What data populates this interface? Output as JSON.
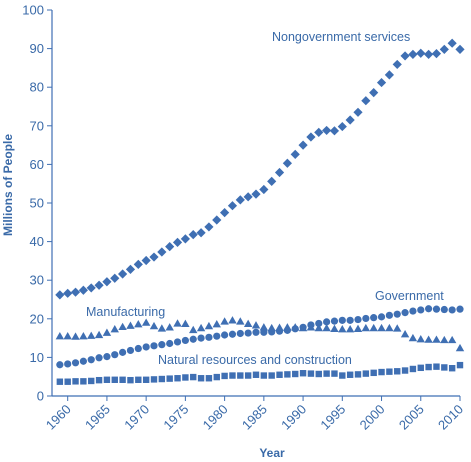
{
  "colors": {
    "accent": "#3f6fb3",
    "text": "#3a6aa8"
  },
  "chart_data": {
    "type": "scatter",
    "title": "",
    "xlabel": "Year",
    "ylabel": "Millions of People",
    "xlim": [
      1958,
      2010
    ],
    "ylim": [
      0,
      100
    ],
    "x_ticks": [
      1960,
      1965,
      1970,
      1975,
      1980,
      1985,
      1990,
      1995,
      2000,
      2005,
      2010
    ],
    "y_ticks": [
      0,
      10,
      20,
      30,
      40,
      50,
      60,
      70,
      80,
      90,
      100
    ],
    "grid": false,
    "legend": "none (series labeled directly on chart)",
    "x": [
      1959,
      1960,
      1961,
      1962,
      1963,
      1964,
      1965,
      1966,
      1967,
      1968,
      1969,
      1970,
      1971,
      1972,
      1973,
      1974,
      1975,
      1976,
      1977,
      1978,
      1979,
      1980,
      1981,
      1982,
      1983,
      1984,
      1985,
      1986,
      1987,
      1988,
      1989,
      1990,
      1991,
      1992,
      1993,
      1994,
      1995,
      1996,
      1997,
      1998,
      1999,
      2000,
      2001,
      2002,
      2003,
      2004,
      2005,
      2006,
      2007,
      2008,
      2009,
      2010
    ],
    "series": [
      {
        "name": "Nongovernment services",
        "marker": "diamond",
        "values": [
          26.2,
          26.6,
          26.9,
          27.4,
          28.0,
          28.7,
          29.6,
          30.5,
          31.6,
          32.8,
          34.1,
          35.1,
          36.0,
          37.3,
          38.7,
          39.8,
          40.7,
          41.8,
          42.3,
          43.8,
          45.6,
          47.5,
          49.3,
          50.8,
          51.6,
          52.3,
          53.5,
          55.6,
          57.9,
          60.3,
          62.6,
          65.0,
          67.1,
          68.3,
          68.8,
          68.7,
          69.8,
          71.5,
          73.5,
          76.5,
          78.6,
          81.2,
          83.2,
          85.9,
          88.1,
          88.5,
          88.8,
          88.5,
          88.7,
          89.8,
          91.4,
          89.8
        ]
      },
      {
        "name": "Government",
        "marker": "circle",
        "values": [
          8.1,
          8.3,
          8.6,
          9.0,
          9.4,
          9.9,
          10.2,
          10.7,
          11.3,
          11.8,
          12.3,
          12.7,
          13.0,
          13.3,
          13.6,
          14.0,
          14.4,
          14.7,
          15.0,
          15.2,
          15.5,
          15.8,
          16.0,
          16.2,
          16.3,
          16.5,
          16.5,
          16.6,
          16.8,
          17.0,
          17.4,
          17.8,
          18.4,
          18.8,
          19.2,
          19.4,
          19.6,
          19.6,
          19.8,
          20.1,
          20.3,
          20.5,
          20.9,
          21.2,
          21.6,
          22.0,
          22.3,
          22.6,
          22.5,
          22.4,
          22.3,
          22.5
        ]
      },
      {
        "name": "Manufacturing",
        "marker": "triangle",
        "values": [
          15.5,
          15.5,
          15.4,
          15.5,
          15.6,
          15.8,
          16.4,
          17.3,
          17.9,
          18.2,
          18.6,
          19.0,
          18.1,
          17.5,
          17.8,
          18.8,
          18.7,
          17.1,
          17.6,
          18.1,
          18.6,
          19.3,
          19.6,
          19.3,
          18.7,
          18.3,
          17.8,
          17.6,
          17.7,
          17.8,
          17.8,
          17.6,
          17.8,
          17.6,
          17.6,
          17.4,
          17.3,
          17.3,
          17.4,
          17.6,
          17.6,
          17.6,
          17.6,
          17.5,
          16.0,
          15.0,
          14.7,
          14.6,
          14.6,
          14.5,
          14.5,
          12.4
        ]
      },
      {
        "name": "Natural resources and construction",
        "marker": "square",
        "values": [
          3.7,
          3.7,
          3.8,
          3.8,
          3.9,
          4.1,
          4.2,
          4.2,
          4.2,
          4.1,
          4.2,
          4.2,
          4.3,
          4.4,
          4.5,
          4.6,
          4.8,
          4.9,
          4.6,
          4.6,
          4.9,
          5.2,
          5.3,
          5.3,
          5.3,
          5.5,
          5.3,
          5.3,
          5.5,
          5.6,
          5.7,
          5.9,
          5.8,
          5.7,
          5.8,
          5.8,
          5.3,
          5.5,
          5.6,
          5.8,
          6.0,
          6.2,
          6.3,
          6.4,
          6.6,
          7.0,
          7.3,
          7.5,
          7.6,
          7.4,
          7.2,
          8.0
        ]
      }
    ],
    "annotations": [
      {
        "text": "Nongovernment services",
        "series": "Nongovernment services"
      },
      {
        "text": "Government",
        "series": "Government"
      },
      {
        "text": "Manufacturing",
        "series": "Manufacturing"
      },
      {
        "text": "Natural resources and construction",
        "series": "Natural resources and construction"
      }
    ]
  }
}
